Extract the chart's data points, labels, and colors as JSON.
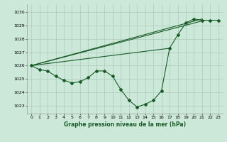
{
  "title": "Graphe pression niveau de la mer (hPa)",
  "bg_color": "#cce8d8",
  "grid_color": "#aaccbb",
  "line_color": "#1a5c28",
  "x_ticks": [
    0,
    1,
    2,
    3,
    4,
    5,
    6,
    7,
    8,
    9,
    10,
    11,
    12,
    13,
    14,
    15,
    16,
    17,
    18,
    19,
    20,
    21,
    22,
    23
  ],
  "y_ticks": [
    1023,
    1024,
    1025,
    1026,
    1027,
    1028,
    1029,
    1030
  ],
  "ylim": [
    1022.4,
    1030.6
  ],
  "xlim": [
    -0.5,
    23.5
  ],
  "main_x": [
    0,
    1,
    2,
    3,
    4,
    5,
    6,
    7,
    8,
    9,
    10,
    11,
    12,
    13,
    14,
    15,
    16,
    17,
    18,
    19,
    20,
    21,
    22,
    23
  ],
  "main_y": [
    1026.0,
    1025.7,
    1025.6,
    1025.2,
    1024.9,
    1024.7,
    1024.8,
    1025.1,
    1025.6,
    1025.6,
    1025.2,
    1024.2,
    1023.4,
    1022.9,
    1023.1,
    1023.4,
    1024.1,
    1027.3,
    1028.3,
    1029.2,
    1029.5,
    1029.4,
    1029.4,
    1029.4
  ],
  "fan_lines": [
    {
      "x": [
        0,
        21
      ],
      "y": [
        1026.0,
        1029.5
      ]
    },
    {
      "x": [
        0,
        21
      ],
      "y": [
        1026.0,
        1029.35
      ]
    },
    {
      "x": [
        0,
        17
      ],
      "y": [
        1026.0,
        1027.3
      ]
    }
  ]
}
